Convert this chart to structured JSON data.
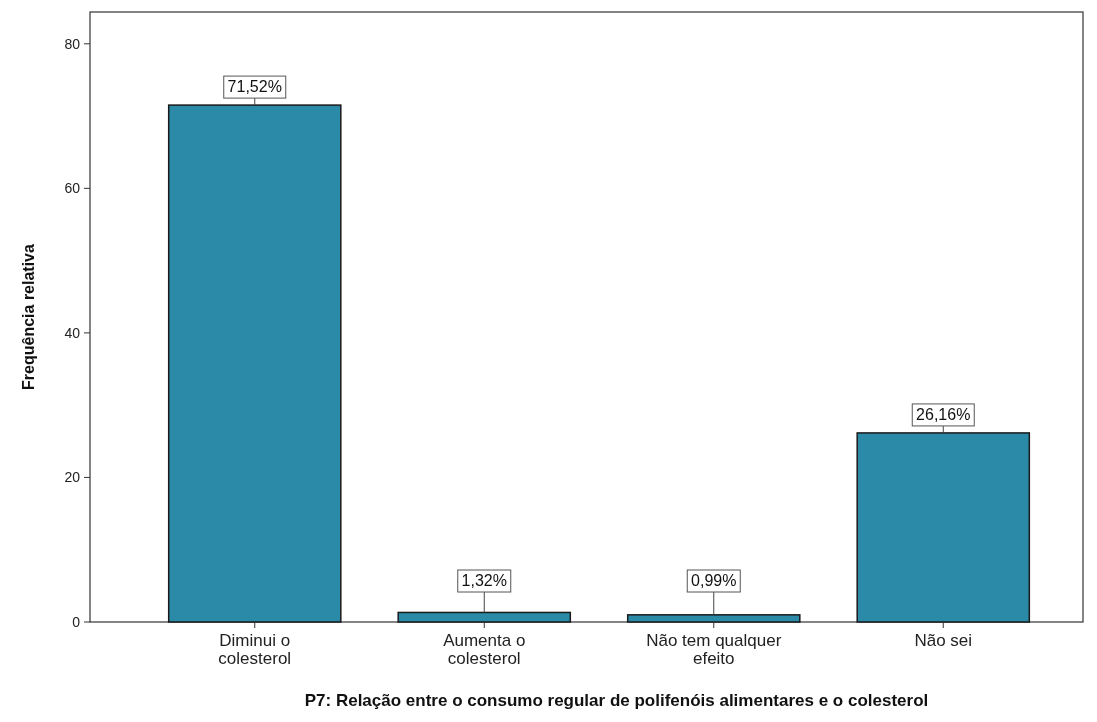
{
  "chart_data": {
    "type": "bar",
    "xlabel": "P7: Relação entre o consumo regular de polifenóis alimentares e o colesterol",
    "ylabel": "Frequência relativa",
    "categories": [
      "Diminui o colesterol",
      "Aumenta o colesterol",
      "Não tem qualquer efeito",
      "Não sei"
    ],
    "values": [
      71.52,
      1.32,
      0.99,
      26.16
    ],
    "value_labels": [
      "71,52%",
      "1,32%",
      "0,99%",
      "26,16%"
    ],
    "color": "#2a8aa8",
    "ylim": [
      0,
      84.4
    ],
    "yticks": [
      0,
      20,
      40,
      60,
      80
    ],
    "grid": false
  }
}
